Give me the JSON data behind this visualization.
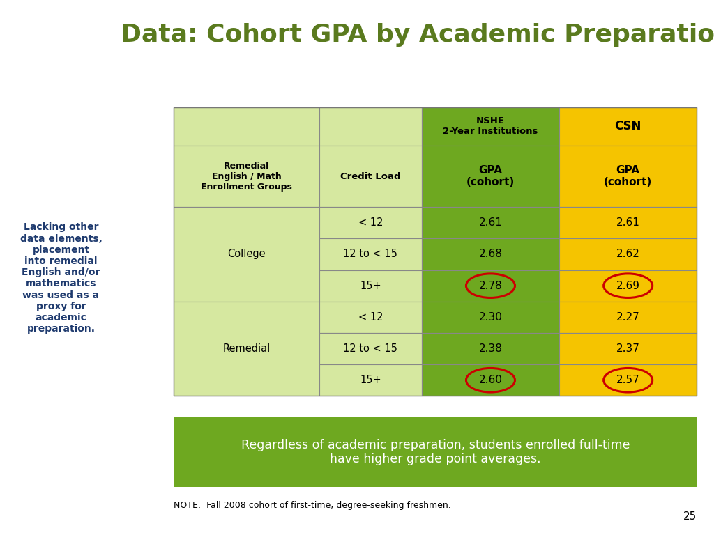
{
  "title": "Data: Cohort GPA by Academic Preparation",
  "title_color": "#5a7a1e",
  "title_fontsize": 26,
  "bg_color": "#ffffff",
  "left_panel_color": "#7db31a",
  "blue_stripe_color": "#2e4d8a",
  "left_text": "Lacking other\ndata elements,\nplacement\ninto remedial\nEnglish and/or\nmathematics\nwas used as a\nproxy for\nacademic\npreparation.",
  "left_text_color": "#1e3a6e",
  "rows": [
    [
      "College",
      "< 12",
      "2.61",
      "2.61",
      false,
      false
    ],
    [
      "College",
      "12 to < 15",
      "2.68",
      "2.62",
      false,
      false
    ],
    [
      "College",
      "15+",
      "2.78",
      "2.69",
      true,
      true
    ],
    [
      "Remedial",
      "< 12",
      "2.30",
      "2.27",
      false,
      false
    ],
    [
      "Remedial",
      "12 to < 15",
      "2.38",
      "2.37",
      false,
      false
    ],
    [
      "Remedial",
      "15+",
      "2.60",
      "2.57",
      true,
      true
    ]
  ],
  "cell_bg_light_green": "#d6e8a0",
  "header_bg_green": "#6ea820",
  "header_bg_gold": "#f5c400",
  "circle_color": "#cc0000",
  "summary_box_color": "#6ea820",
  "summary_text_line1": "Regardless of academic preparation, students enrolled full-time",
  "summary_text_line2": "have higher grade point averages.",
  "summary_text_color": "#ffffff",
  "note_text": "NOTE:  Fall 2008 cohort of first-time, degree-seeking freshmen.",
  "page_number": "25"
}
